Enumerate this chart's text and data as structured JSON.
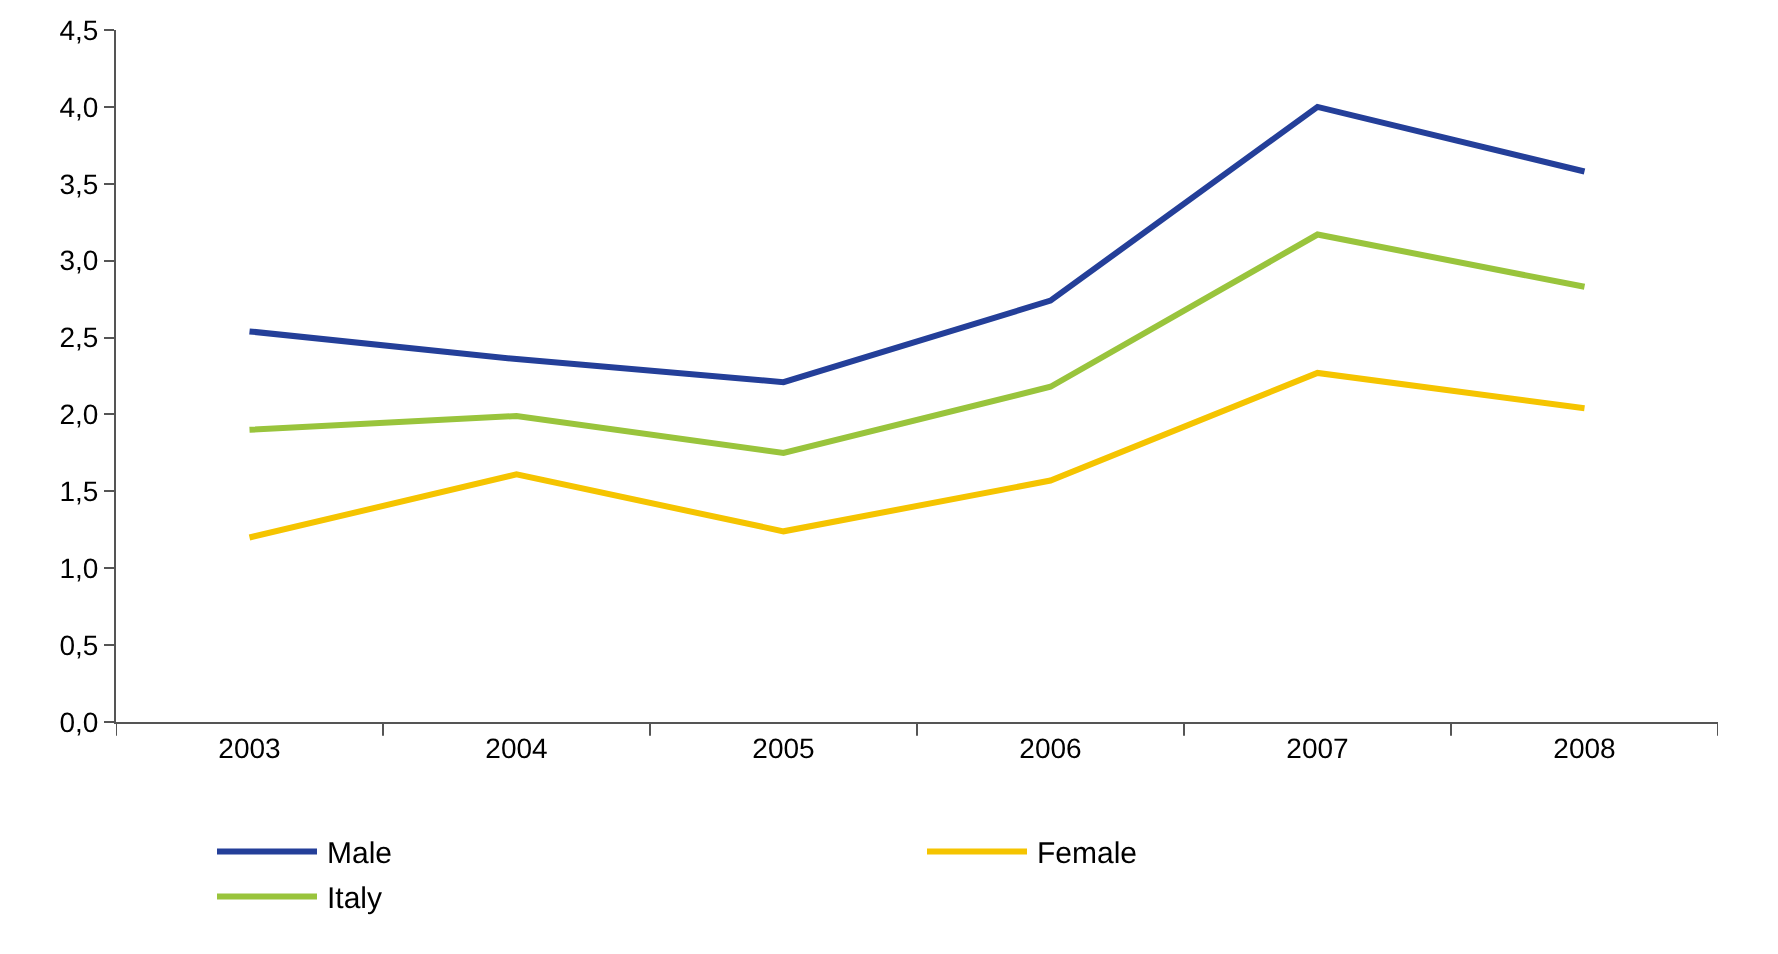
{
  "chart_data": {
    "type": "line",
    "categories": [
      "2003",
      "2004",
      "2005",
      "2006",
      "2007",
      "2008"
    ],
    "series": [
      {
        "name": "Male",
        "color": "#243f99",
        "values": [
          2.54,
          2.36,
          2.21,
          2.74,
          4.0,
          3.58
        ]
      },
      {
        "name": "Female",
        "color": "#f5c400",
        "values": [
          1.2,
          1.61,
          1.24,
          1.57,
          2.27,
          2.04
        ]
      },
      {
        "name": "Italy",
        "color": "#99c43c",
        "values": [
          1.9,
          1.99,
          1.75,
          2.18,
          3.17,
          2.83
        ]
      }
    ],
    "ylim": [
      0,
      4.5
    ],
    "yticks": [
      {
        "value": 0,
        "label": "0,0"
      },
      {
        "value": 0.5,
        "label": "0,5"
      },
      {
        "value": 1,
        "label": "1,0"
      },
      {
        "value": 1.5,
        "label": "1,5"
      },
      {
        "value": 2,
        "label": "2,0"
      },
      {
        "value": 2.5,
        "label": "2,5"
      },
      {
        "value": 3,
        "label": "3,0"
      },
      {
        "value": 3.5,
        "label": "3,5"
      },
      {
        "value": 4,
        "label": "4,0"
      },
      {
        "value": 4.5,
        "label": "4,5"
      }
    ],
    "grid": false,
    "legend": "bottom",
    "marker": "none",
    "line_style": "solid"
  }
}
